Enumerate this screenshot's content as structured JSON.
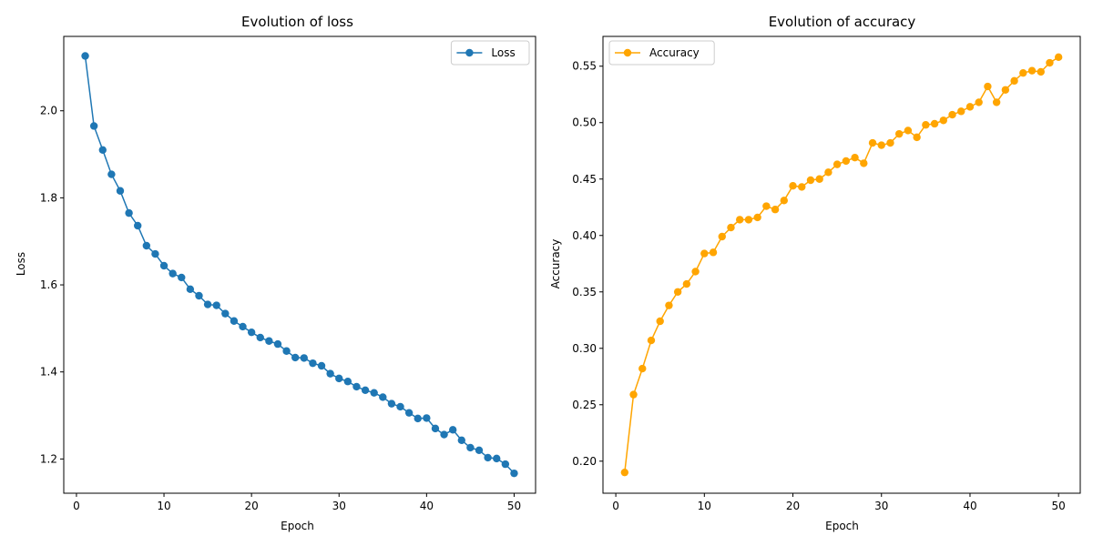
{
  "chart_data": [
    {
      "type": "line",
      "title": "Evolution of loss",
      "xlabel": "Epoch",
      "ylabel": "Loss",
      "xlim": [
        -1.45,
        52.45
      ],
      "ylim": [
        1.1213,
        2.1709
      ],
      "xticks": [
        0,
        10,
        20,
        30,
        40,
        50
      ],
      "yticks": [
        1.2,
        1.4,
        1.6,
        1.8,
        2.0
      ],
      "ytick_labels": [
        "1.2",
        "1.4",
        "1.6",
        "1.8",
        "2.0"
      ],
      "legend_position": "upper right",
      "grid": false,
      "series": [
        {
          "name": "Loss",
          "color": "#1f77b4",
          "marker": "circle",
          "x": [
            1,
            2,
            3,
            4,
            5,
            6,
            7,
            8,
            9,
            10,
            11,
            12,
            13,
            14,
            15,
            16,
            17,
            18,
            19,
            20,
            21,
            22,
            23,
            24,
            25,
            26,
            27,
            28,
            29,
            30,
            31,
            32,
            33,
            34,
            35,
            36,
            37,
            38,
            39,
            40,
            41,
            42,
            43,
            44,
            45,
            46,
            47,
            48,
            49,
            50
          ],
          "y": [
            2.126,
            1.965,
            1.91,
            1.854,
            1.816,
            1.765,
            1.736,
            1.69,
            1.671,
            1.644,
            1.626,
            1.617,
            1.59,
            1.575,
            1.555,
            1.553,
            1.534,
            1.517,
            1.504,
            1.491,
            1.479,
            1.471,
            1.464,
            1.448,
            1.433,
            1.432,
            1.42,
            1.414,
            1.396,
            1.385,
            1.378,
            1.366,
            1.358,
            1.352,
            1.342,
            1.327,
            1.32,
            1.306,
            1.293,
            1.294,
            1.27,
            1.256,
            1.267,
            1.243,
            1.226,
            1.22,
            1.203,
            1.201,
            1.188,
            1.167
          ]
        }
      ]
    },
    {
      "type": "line",
      "title": "Evolution of accuracy",
      "xlabel": "Epoch",
      "ylabel": "Accuracy",
      "xlim": [
        -1.45,
        52.45
      ],
      "ylim": [
        0.1716,
        0.5764
      ],
      "xticks": [
        0,
        10,
        20,
        30,
        40,
        50
      ],
      "yticks": [
        0.2,
        0.25,
        0.3,
        0.35,
        0.4,
        0.45,
        0.5,
        0.55
      ],
      "ytick_labels": [
        "0.20",
        "0.25",
        "0.30",
        "0.35",
        "0.40",
        "0.45",
        "0.50",
        "0.55"
      ],
      "legend_position": "upper left",
      "grid": false,
      "series": [
        {
          "name": "Accuracy",
          "color": "#ffa500",
          "marker": "circle",
          "x": [
            1,
            2,
            3,
            4,
            5,
            6,
            7,
            8,
            9,
            10,
            11,
            12,
            13,
            14,
            15,
            16,
            17,
            18,
            19,
            20,
            21,
            22,
            23,
            24,
            25,
            26,
            27,
            28,
            29,
            30,
            31,
            32,
            33,
            34,
            35,
            36,
            37,
            38,
            39,
            40,
            41,
            42,
            43,
            44,
            45,
            46,
            47,
            48,
            49,
            50
          ],
          "y": [
            0.19,
            0.259,
            0.282,
            0.307,
            0.324,
            0.338,
            0.35,
            0.357,
            0.368,
            0.384,
            0.385,
            0.399,
            0.407,
            0.414,
            0.414,
            0.416,
            0.426,
            0.423,
            0.431,
            0.444,
            0.443,
            0.449,
            0.45,
            0.456,
            0.463,
            0.466,
            0.469,
            0.464,
            0.482,
            0.48,
            0.482,
            0.49,
            0.493,
            0.487,
            0.498,
            0.499,
            0.502,
            0.507,
            0.51,
            0.514,
            0.518,
            0.532,
            0.518,
            0.529,
            0.537,
            0.544,
            0.546,
            0.545,
            0.553,
            0.558
          ]
        }
      ]
    }
  ]
}
